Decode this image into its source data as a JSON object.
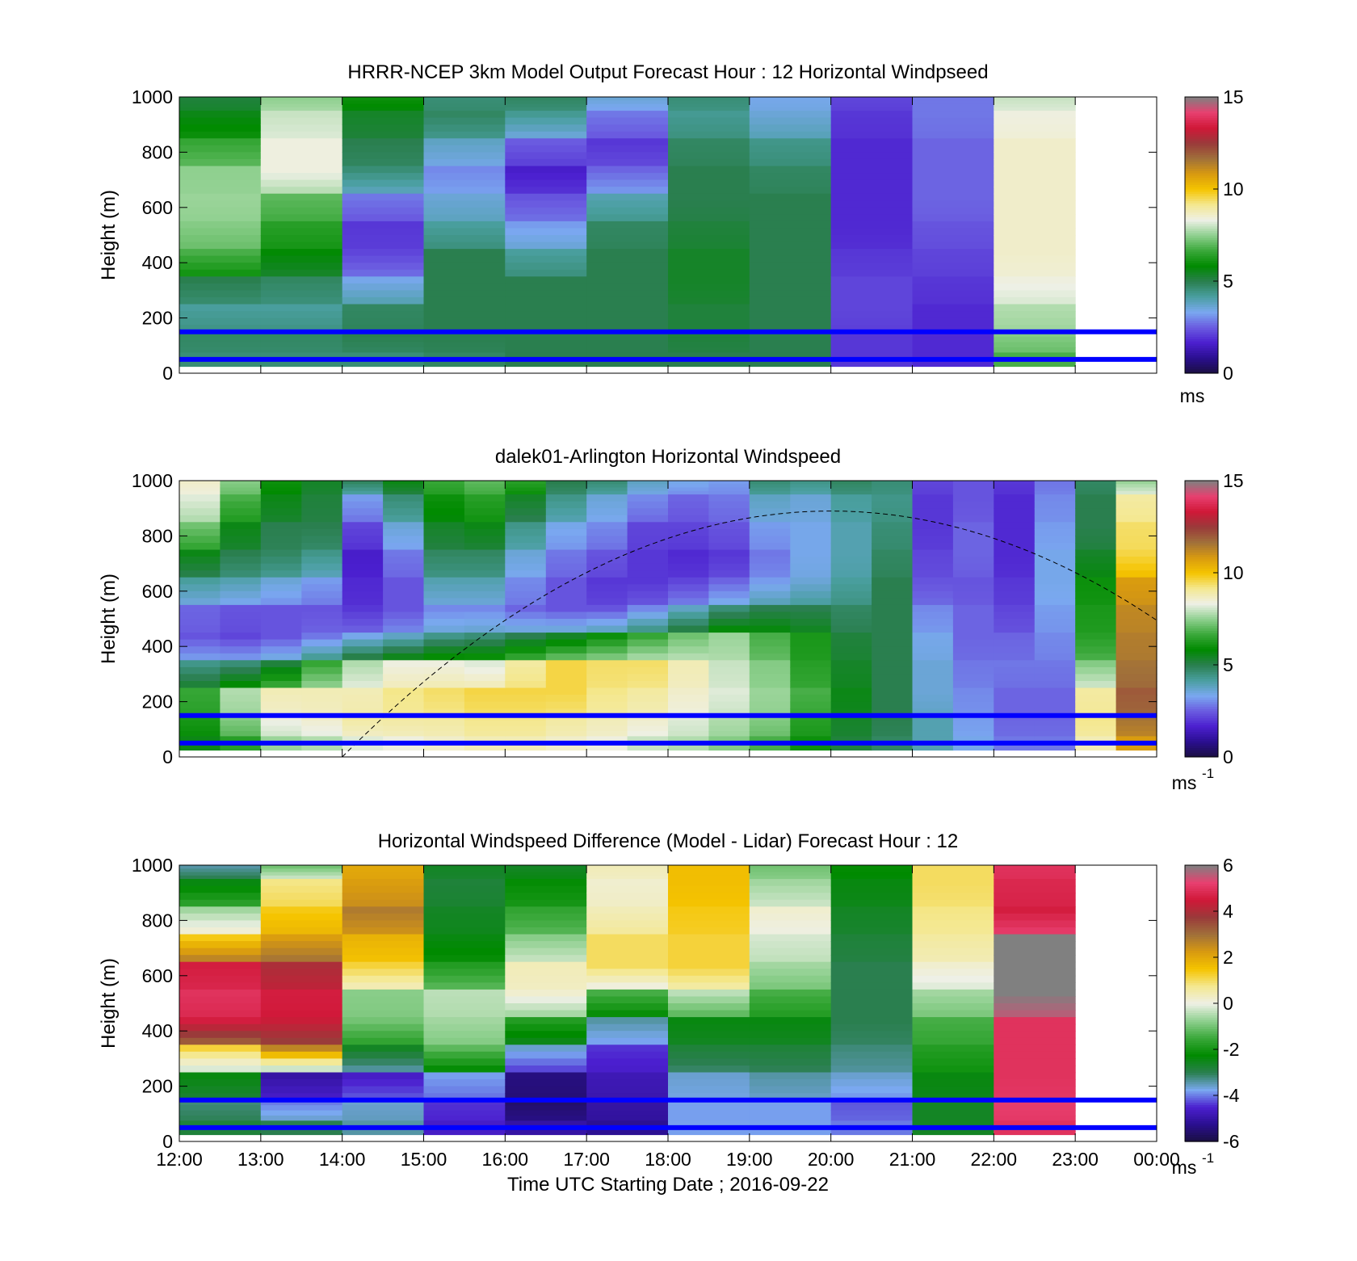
{
  "colormaps": {
    "speed": [
      "#1a0f40",
      "#2a0f8f",
      "#4b1fcf",
      "#6a5be0",
      "#7aa8f0",
      "#4a9fa0",
      "#2a7f4f",
      "#008a00",
      "#3aa83a",
      "#8fd08f",
      "#eef0e6",
      "#f4e890",
      "#f5c400",
      "#d89a10",
      "#a0703a",
      "#9a3a3a",
      "#d01838",
      "#e84070",
      "#808080"
    ],
    "diff": [
      "#1a0f40",
      "#2a0f8f",
      "#4b1fcf",
      "#7aa8f0",
      "#2a7f4f",
      "#008a00",
      "#3aa83a",
      "#8fd08f",
      "#eef0e6",
      "#f4e890",
      "#f5c400",
      "#d89a10",
      "#a0703a",
      "#9a3a3a",
      "#d01838",
      "#e84070",
      "#808080"
    ],
    "overlay_line": "#0000ff"
  },
  "x_tick_labels": [
    "12:00",
    "13:00",
    "14:00",
    "15:00",
    "16:00",
    "17:00",
    "18:00",
    "19:00",
    "20:00",
    "21:00",
    "22:00",
    "23:00",
    "00:00"
  ],
  "x_axis_label": "Time UTC  Starting Date ; 2016-09-22",
  "chart_data": [
    {
      "type": "heatmap",
      "title": "HRRR-NCEP 3km Model Output   Forecast Hour : 12 Horizontal Windpseed",
      "xlabel": "",
      "ylabel": "Height (m)",
      "ylim": [
        0,
        1000
      ],
      "yticks": [
        "0",
        "200",
        "400",
        "600",
        "800",
        "1000"
      ],
      "colorbar": {
        "ticks": [
          "0",
          "5",
          "10",
          "15"
        ],
        "range": [
          0,
          15
        ],
        "unit": "ms",
        "unit_sup": ""
      },
      "hlines": [
        150,
        50
      ],
      "x": [
        "12:00",
        "13:00",
        "14:00",
        "15:00",
        "16:00",
        "17:00",
        "18:00",
        "19:00",
        "20:00",
        "21:00",
        "22:00"
      ],
      "y_levels": [
        1000,
        900,
        800,
        700,
        600,
        500,
        400,
        300,
        200,
        100,
        50
      ],
      "z": [
        [
          5.2,
          7.5,
          6.0,
          4.6,
          4.8,
          3.6,
          4.6,
          3.4,
          2.2,
          2.8,
          8.0
        ],
        [
          5.6,
          8.0,
          5.4,
          4.8,
          4.3,
          2.8,
          4.3,
          3.6,
          2.0,
          2.8,
          8.4
        ],
        [
          6.6,
          8.4,
          5.0,
          3.8,
          2.5,
          2.0,
          4.8,
          4.4,
          1.8,
          2.6,
          8.6
        ],
        [
          7.5,
          8.4,
          4.6,
          3.0,
          1.6,
          2.6,
          5.0,
          4.8,
          1.8,
          2.6,
          8.6
        ],
        [
          7.6,
          7.0,
          2.8,
          3.6,
          2.4,
          4.0,
          5.0,
          5.0,
          1.8,
          2.6,
          8.6
        ],
        [
          7.4,
          6.4,
          2.0,
          4.2,
          3.2,
          4.8,
          5.2,
          5.0,
          1.8,
          2.4,
          8.6
        ],
        [
          6.8,
          5.8,
          2.2,
          5.0,
          4.2,
          5.0,
          5.4,
          5.0,
          2.0,
          2.2,
          8.6
        ],
        [
          5.0,
          4.8,
          3.4,
          5.0,
          5.0,
          5.0,
          5.4,
          5.0,
          2.2,
          2.0,
          8.4
        ],
        [
          4.2,
          4.2,
          4.8,
          5.0,
          5.0,
          5.0,
          5.2,
          5.0,
          2.2,
          1.8,
          7.8
        ],
        [
          4.8,
          4.8,
          5.0,
          5.0,
          5.0,
          5.0,
          5.2,
          5.0,
          2.0,
          1.8,
          7.4
        ],
        [
          4.6,
          4.6,
          4.6,
          4.8,
          5.0,
          5.0,
          5.0,
          5.0,
          2.0,
          1.8,
          6.8
        ]
      ]
    },
    {
      "type": "heatmap",
      "title": "dalek01-Arlington  Horizontal Windspeed",
      "xlabel": "",
      "ylabel": "Height (m)",
      "ylim": [
        0,
        1000
      ],
      "yticks": [
        "0",
        "200",
        "400",
        "600",
        "800",
        "1000"
      ],
      "colorbar": {
        "ticks": [
          "0",
          "5",
          "10",
          "15"
        ],
        "range": [
          0,
          15
        ],
        "unit": "ms",
        "unit_sup": "-1"
      },
      "hlines": [
        150,
        50
      ],
      "curve_peak": {
        "time": "20:00",
        "height": 890,
        "start_time": "14:00",
        "start_height": 0
      },
      "x": [
        "12:00",
        "12:30",
        "13:00",
        "13:30",
        "14:00",
        "14:30",
        "15:00",
        "15:30",
        "16:00",
        "16:30",
        "17:00",
        "17:30",
        "18:00",
        "18:30",
        "19:00",
        "19:30",
        "20:00",
        "20:30",
        "21:00",
        "21:30",
        "22:00",
        "22:30",
        "23:00",
        "23:30"
      ],
      "y_levels": [
        1000,
        900,
        800,
        700,
        600,
        500,
        400,
        300,
        200,
        100,
        50
      ],
      "z": [
        [
          8.6,
          7.4,
          6.0,
          5.4,
          4.8,
          5.6,
          6.6,
          7.0,
          6.4,
          5.0,
          4.6,
          3.8,
          3.4,
          3.2,
          4.6,
          4.4,
          4.8,
          4.6,
          2.2,
          2.4,
          2.0,
          2.8,
          4.8,
          7.6
        ],
        [
          8.2,
          6.8,
          5.6,
          5.2,
          3.2,
          4.6,
          6.0,
          6.4,
          5.4,
          4.4,
          3.6,
          3.0,
          2.6,
          2.8,
          3.8,
          3.6,
          4.2,
          4.4,
          2.0,
          2.4,
          1.8,
          3.0,
          5.0,
          9.0
        ],
        [
          7.2,
          5.6,
          5.0,
          5.0,
          2.2,
          3.6,
          5.4,
          5.6,
          4.4,
          3.4,
          3.0,
          2.2,
          2.2,
          2.4,
          3.2,
          3.4,
          4.0,
          4.6,
          2.0,
          2.6,
          1.8,
          3.2,
          5.0,
          9.4
        ],
        [
          5.6,
          5.0,
          4.8,
          4.4,
          1.6,
          2.8,
          4.8,
          4.8,
          3.6,
          2.8,
          2.4,
          2.0,
          1.8,
          2.0,
          2.8,
          3.4,
          4.0,
          4.8,
          2.2,
          2.6,
          1.8,
          3.4,
          5.4,
          9.6
        ],
        [
          4.2,
          4.0,
          3.6,
          3.2,
          1.8,
          2.4,
          4.0,
          4.0,
          3.0,
          2.4,
          2.0,
          2.0,
          2.2,
          2.6,
          3.2,
          3.6,
          4.2,
          5.0,
          2.4,
          2.4,
          2.0,
          3.4,
          6.0,
          10.8
        ],
        [
          2.6,
          2.4,
          2.4,
          2.4,
          2.0,
          2.4,
          3.0,
          3.0,
          2.6,
          2.4,
          2.4,
          3.0,
          3.8,
          4.6,
          5.0,
          5.0,
          4.8,
          5.0,
          3.0,
          2.6,
          2.2,
          3.2,
          6.2,
          11.2
        ],
        [
          2.4,
          2.2,
          2.4,
          2.8,
          3.4,
          3.8,
          4.4,
          4.6,
          5.0,
          5.4,
          6.0,
          6.6,
          7.2,
          7.6,
          6.8,
          6.2,
          5.2,
          5.0,
          3.4,
          2.6,
          2.6,
          3.0,
          6.4,
          11.4
        ],
        [
          4.4,
          4.6,
          5.2,
          6.6,
          7.8,
          8.4,
          8.4,
          8.2,
          9.0,
          9.6,
          9.4,
          9.4,
          8.8,
          8.0,
          7.4,
          6.4,
          5.4,
          5.0,
          3.6,
          2.8,
          2.8,
          2.8,
          7.4,
          11.6
        ],
        [
          6.6,
          7.8,
          8.8,
          8.8,
          8.8,
          9.2,
          9.4,
          9.6,
          9.6,
          9.6,
          9.2,
          9.0,
          8.6,
          8.2,
          7.6,
          6.8,
          5.6,
          5.0,
          3.6,
          3.0,
          2.6,
          2.6,
          9.0,
          12.0
        ],
        [
          6.2,
          7.4,
          8.4,
          8.6,
          9.0,
          9.0,
          9.0,
          9.2,
          9.2,
          9.0,
          8.8,
          8.6,
          8.2,
          7.8,
          7.4,
          6.4,
          5.4,
          5.0,
          4.0,
          3.2,
          2.6,
          2.6,
          9.2,
          11.6
        ],
        [
          5.6,
          6.4,
          7.6,
          7.8,
          8.2,
          8.4,
          8.6,
          8.8,
          8.8,
          8.6,
          8.4,
          8.0,
          7.8,
          7.4,
          6.8,
          6.0,
          5.2,
          4.8,
          4.0,
          3.4,
          2.8,
          2.8,
          8.8,
          10.8
        ]
      ]
    },
    {
      "type": "heatmap",
      "title": "Horizontal Windspeed Difference (Model - Lidar) Forecast Hour : 12",
      "xlabel": "Time UTC  Starting Date ; 2016-09-22",
      "ylabel": "Height (m)",
      "ylim": [
        0,
        1000
      ],
      "yticks": [
        "0",
        "200",
        "400",
        "600",
        "800",
        "1000"
      ],
      "colorbar": {
        "ticks": [
          "-6",
          "-4",
          "-2",
          "0",
          "2",
          "4",
          "6"
        ],
        "range": [
          -6,
          6
        ],
        "unit": "ms",
        "unit_sup": "-1"
      },
      "hlines": [
        150,
        50
      ],
      "x": [
        "12:00",
        "13:00",
        "14:00",
        "15:00",
        "16:00",
        "17:00",
        "18:00",
        "19:00",
        "20:00",
        "21:00",
        "22:00"
      ],
      "y_levels": [
        1000,
        900,
        800,
        700,
        600,
        500,
        400,
        300,
        200,
        100,
        50
      ],
      "z": [
        [
          -3.4,
          -1.0,
          2.0,
          -2.6,
          -2.6,
          0.4,
          1.6,
          -1.0,
          -2.2,
          1.0,
          5.0
        ],
        [
          -2.4,
          0.8,
          2.2,
          -2.8,
          -2.2,
          0.2,
          1.6,
          -0.6,
          -2.4,
          1.0,
          4.8
        ],
        [
          -0.6,
          1.4,
          2.8,
          -2.6,
          -1.6,
          0.4,
          1.4,
          0.2,
          -2.6,
          0.8,
          4.6
        ],
        [
          1.4,
          2.2,
          1.8,
          -2.4,
          -0.8,
          1.0,
          1.2,
          -0.2,
          -2.8,
          0.6,
          6.0
        ],
        [
          4.6,
          4.0,
          1.2,
          -1.8,
          0.4,
          1.0,
          1.2,
          -0.6,
          -3.0,
          0.2,
          6.0
        ],
        [
          5.0,
          4.6,
          -0.8,
          -0.4,
          0.2,
          -1.4,
          -0.4,
          -1.4,
          -3.0,
          -0.6,
          6.0
        ],
        [
          4.6,
          4.4,
          -1.0,
          -0.6,
          -1.8,
          -3.4,
          -2.4,
          -2.4,
          -3.0,
          -1.4,
          5.0
        ],
        [
          1.2,
          2.6,
          -2.6,
          -1.2,
          -3.6,
          -4.4,
          -2.8,
          -2.8,
          -3.2,
          -1.8,
          5.0
        ],
        [
          -2.4,
          -5.0,
          -4.6,
          -3.8,
          -5.4,
          -4.8,
          -3.6,
          -3.4,
          -3.6,
          -2.4,
          5.0
        ],
        [
          -3.2,
          -4.0,
          -3.6,
          -4.4,
          -5.6,
          -5.0,
          -3.8,
          -3.8,
          -4.2,
          -2.6,
          5.2
        ],
        [
          -2.8,
          -3.0,
          -3.4,
          -4.6,
          -5.0,
          -5.2,
          -3.8,
          -3.8,
          -4.0,
          -2.6,
          5.0
        ]
      ]
    }
  ]
}
